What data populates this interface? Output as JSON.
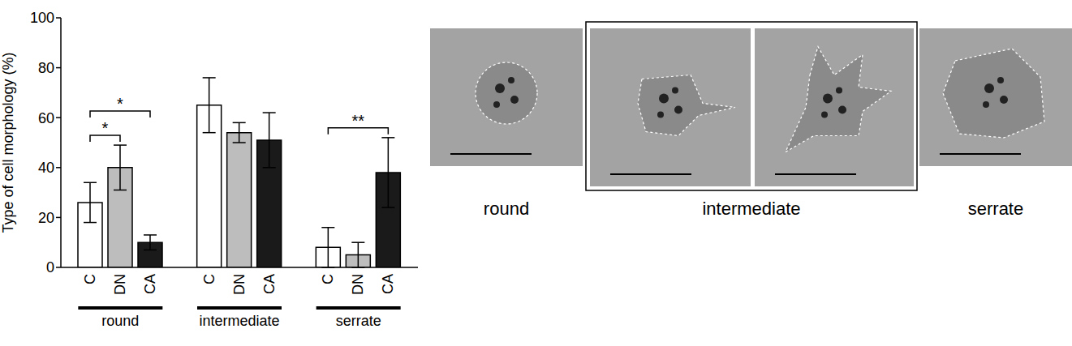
{
  "chart_data": {
    "type": "bar",
    "y_label": "Type of cell morphology (%)",
    "categories": [
      "round",
      "intermediate",
      "serrate"
    ],
    "series": [
      {
        "name": "C",
        "color": "#ffffff",
        "values": [
          26,
          65,
          8
        ],
        "errors": [
          8,
          11,
          8
        ]
      },
      {
        "name": "DN",
        "color": "#bdbdbd",
        "values": [
          40,
          54,
          5
        ],
        "errors": [
          9,
          4,
          5
        ]
      },
      {
        "name": "CA",
        "color": "#1a1a1a",
        "values": [
          10,
          51,
          38
        ],
        "errors": [
          3,
          11,
          14
        ]
      }
    ],
    "ylim": [
      0,
      100
    ],
    "yticks": [
      0,
      20,
      40,
      60,
      80,
      100
    ],
    "annotations": [
      {
        "category": "round",
        "from": "C",
        "to": "DN",
        "label": "*"
      },
      {
        "category": "round",
        "from": "C",
        "to": "CA",
        "label": "*"
      },
      {
        "category": "serrate",
        "from": "C",
        "to": "CA",
        "label": "**"
      }
    ]
  },
  "image_panels": {
    "labels": [
      "round",
      "intermediate",
      "serrate"
    ]
  }
}
